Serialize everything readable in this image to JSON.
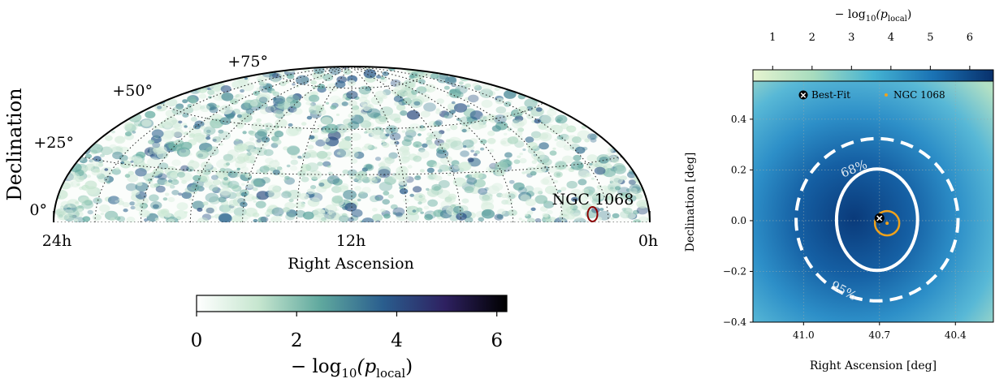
{
  "colors": {
    "sky_colormap": [
      "#ffffff",
      "#c6e6cf",
      "#5fa89e",
      "#2a5e8e",
      "#2e2161",
      "#000000"
    ],
    "zoom_colormap": [
      "#e6f4d0",
      "#a7dcbe",
      "#45b3d2",
      "#1a72b4",
      "#08306b"
    ],
    "ngc_marker_sky": "#8b0000",
    "ngc_marker_zoom": "#f0a21b",
    "contour": "#ffffff"
  },
  "chart_data": [
    {
      "type": "heatmap",
      "projection": "hammer (upper half)",
      "ylabel": "Declination",
      "xlabel": "Right Ascension",
      "dec_tick_labels": [
        "0°",
        "+25°",
        "+50°",
        "+75°"
      ],
      "ra_tick_labels": [
        "24h",
        "12h",
        "0h"
      ],
      "source_label": "NGC 1068",
      "source_position": {
        "ra_deg": 40.67,
        "dec_deg": -0.01
      },
      "grid": true,
      "colorbar": {
        "label": "− log10(plocal)",
        "label_main": "− log",
        "label_sub": "10",
        "label_arg": "(p",
        "label_argsub": "local",
        "label_close": ")",
        "range": [
          0,
          6.2
        ],
        "ticks": [
          "0",
          "2",
          "4",
          "6"
        ],
        "tick_values": [
          0,
          2,
          4,
          6
        ],
        "placement": "bottom"
      }
    },
    {
      "type": "heatmap",
      "xlabel": "Right Ascension [deg]",
      "ylabel": "Declination [deg]",
      "xlim": [
        41.2,
        40.25
      ],
      "ylim": [
        -0.4,
        0.55
      ],
      "x_ticks": [
        "41.0",
        "40.7",
        "40.4"
      ],
      "x_tick_values": [
        41.0,
        40.7,
        40.4
      ],
      "y_ticks": [
        "−0.4",
        "−0.2",
        "0.0",
        "0.2",
        "0.4"
      ],
      "y_tick_values": [
        -0.4,
        -0.2,
        0.0,
        0.2,
        0.4
      ],
      "grid": true,
      "best_fit": {
        "ra": 40.7,
        "dec": 0.01
      },
      "ngc_1068": {
        "ra": 40.67,
        "dec": -0.01
      },
      "contours": [
        {
          "label": "68%",
          "rx_deg": 0.16,
          "ry_deg": 0.2,
          "style": "solid"
        },
        {
          "label": "95%",
          "rx_deg": 0.32,
          "ry_deg": 0.32,
          "style": "dashed"
        }
      ],
      "legend": {
        "entries": [
          "Best-Fit",
          "NGC 1068"
        ],
        "placement": "top"
      },
      "colorbar": {
        "label_main": "− log",
        "label_sub": "10",
        "label_arg": "(p",
        "label_argsub": "local",
        "label_close": ")",
        "range": [
          0.5,
          6.6
        ],
        "ticks": [
          "1",
          "2",
          "3",
          "4",
          "5",
          "6"
        ],
        "tick_values": [
          1,
          2,
          3,
          4,
          5,
          6
        ],
        "placement": "top"
      }
    }
  ]
}
